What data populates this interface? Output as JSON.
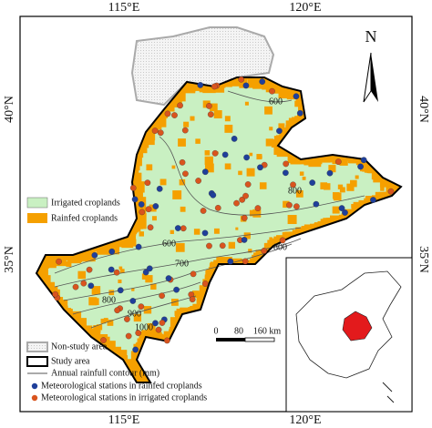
{
  "axes": {
    "top": [
      "115°E",
      "120°E"
    ],
    "bottom": [
      "115°E",
      "120°E"
    ],
    "left": [
      "40°N",
      "35°N"
    ],
    "right": [
      "40°N",
      "35°N"
    ]
  },
  "north": "N",
  "legend_upper": [
    "Irrigated croplands",
    "Rainfed croplands"
  ],
  "legend_lower": [
    "Non-study area",
    "Study area",
    "Annual rainfull contour (mm)",
    "Meteorological stations in rainfed croplands",
    "Meteorological stations in irrigated croplands"
  ],
  "contours": [
    "600",
    "800",
    "600",
    "700",
    "800",
    "800",
    "900",
    "1000"
  ],
  "scale": [
    "0",
    "80",
    "160 km"
  ]
}
